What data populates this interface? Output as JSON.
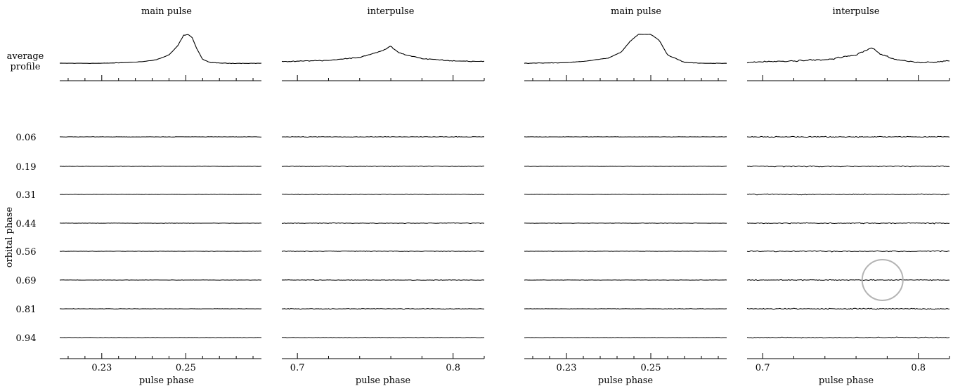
{
  "chart_data": {
    "type": "line",
    "row_label_left": "average\nprofile",
    "average_profile_label_lines": [
      "average",
      "profile"
    ],
    "ylabel": "orbital phase",
    "orbital_phases": [
      "0.06",
      "0.19",
      "0.31",
      "0.44",
      "0.56",
      "0.69",
      "0.81",
      "0.94"
    ],
    "panels": [
      {
        "title": "main pulse",
        "xlabel": "pulse phase",
        "xlim": [
          0.22,
          0.268
        ],
        "major_ticks": [
          0.23,
          0.25
        ],
        "major_tick_labels": [
          "0.23",
          "0.25"
        ],
        "profile": {
          "x": [
            0.22,
            0.23,
            0.235,
            0.24,
            0.243,
            0.246,
            0.248,
            0.2495,
            0.2505,
            0.2515,
            0.2525,
            0.254,
            0.256,
            0.26,
            0.268
          ],
          "y": [
            0.02,
            0.02,
            0.04,
            0.08,
            0.14,
            0.3,
            0.6,
            0.97,
            1.0,
            0.9,
            0.55,
            0.15,
            0.04,
            0.02,
            0.02
          ]
        },
        "noise": 0.03
      },
      {
        "title": "interpulse",
        "xlabel": "pulse phase",
        "xlim": [
          0.69,
          0.82
        ],
        "major_ticks": [
          0.7,
          0.8
        ],
        "major_tick_labels": [
          "0.7",
          "0.8"
        ],
        "profile": {
          "x": [
            0.69,
            0.72,
            0.74,
            0.755,
            0.76,
            0.765,
            0.77,
            0.78,
            0.8,
            0.82
          ],
          "y": [
            0.08,
            0.12,
            0.22,
            0.45,
            0.6,
            0.38,
            0.3,
            0.18,
            0.1,
            0.08
          ]
        },
        "noise": 0.06
      },
      {
        "title": "main pulse",
        "xlabel": "pulse phase",
        "xlim": [
          0.22,
          0.268
        ],
        "major_ticks": [
          0.23,
          0.25
        ],
        "major_tick_labels": [
          "0.23",
          "0.25"
        ],
        "profile": {
          "x": [
            0.22,
            0.23,
            0.235,
            0.24,
            0.243,
            0.245,
            0.247,
            0.25,
            0.252,
            0.254,
            0.258,
            0.262,
            0.268
          ],
          "y": [
            0.02,
            0.04,
            0.1,
            0.2,
            0.4,
            0.75,
            1.0,
            1.0,
            0.8,
            0.3,
            0.05,
            0.02,
            0.02
          ]
        },
        "noise": 0.03
      },
      {
        "title": "interpulse",
        "xlabel": "pulse phase",
        "xlim": [
          0.69,
          0.82
        ],
        "major_ticks": [
          0.7,
          0.8
        ],
        "major_tick_labels": [
          "0.7",
          "0.8"
        ],
        "profile": {
          "x": [
            0.69,
            0.72,
            0.74,
            0.76,
            0.77,
            0.775,
            0.785,
            0.8,
            0.82
          ],
          "y": [
            0.05,
            0.1,
            0.14,
            0.3,
            0.55,
            0.35,
            0.15,
            0.04,
            0.1
          ]
        },
        "noise": 0.1
      }
    ],
    "annotation": {
      "type": "circle",
      "panel": 3,
      "row": "0.69",
      "x": 0.777,
      "color": "#b4b4b4"
    }
  }
}
